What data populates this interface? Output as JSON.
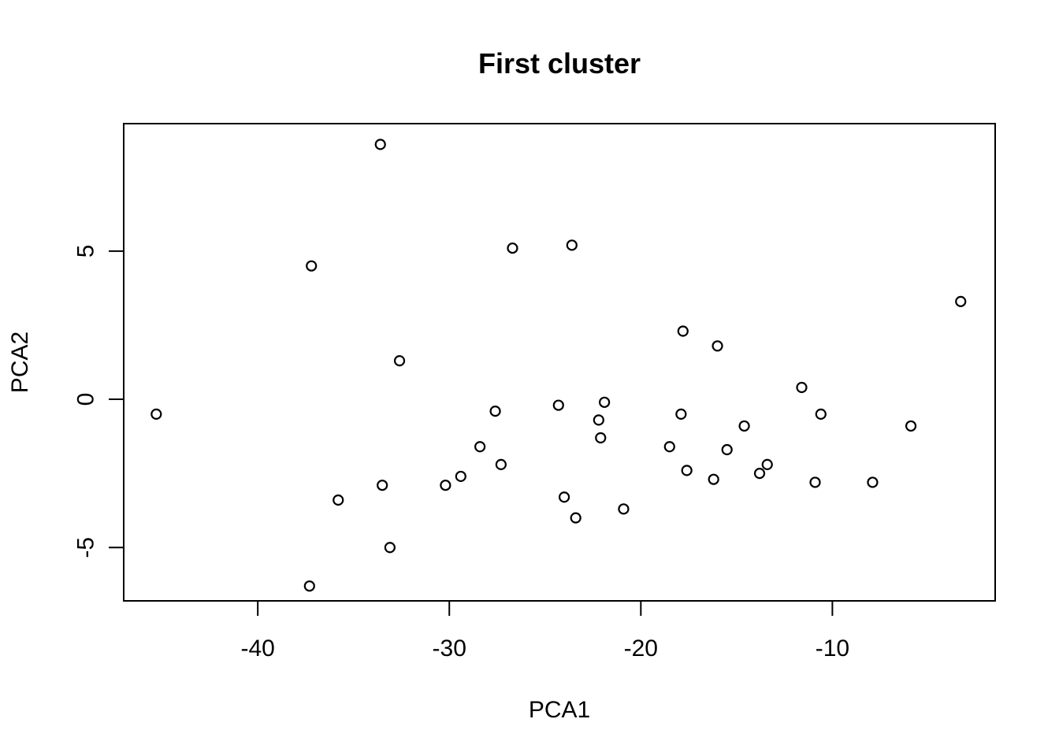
{
  "chart_data": {
    "type": "scatter",
    "title": "First cluster",
    "xlabel": "PCA1",
    "ylabel": "PCA2",
    "xlim": [
      -47,
      -1.5
    ],
    "ylim": [
      -6.8,
      9.3
    ],
    "x_ticks": [
      {
        "value": -40,
        "label": "-40"
      },
      {
        "value": -30,
        "label": "-30"
      },
      {
        "value": -20,
        "label": "-20"
      },
      {
        "value": -10,
        "label": "-10"
      }
    ],
    "y_ticks": [
      {
        "value": -5,
        "label": "-5"
      },
      {
        "value": 0,
        "label": "0"
      },
      {
        "value": 5,
        "label": "5"
      }
    ],
    "grid": false,
    "marker": "open-circle",
    "color": "#000000",
    "points": [
      {
        "x": -45.3,
        "y": -0.5
      },
      {
        "x": -37.3,
        "y": -6.3
      },
      {
        "x": -37.2,
        "y": 4.5
      },
      {
        "x": -35.8,
        "y": -3.4
      },
      {
        "x": -33.6,
        "y": 8.6
      },
      {
        "x": -33.5,
        "y": -2.9
      },
      {
        "x": -33.1,
        "y": -5.0
      },
      {
        "x": -32.6,
        "y": 1.3
      },
      {
        "x": -30.2,
        "y": -2.9
      },
      {
        "x": -29.4,
        "y": -2.6
      },
      {
        "x": -28.4,
        "y": -1.6
      },
      {
        "x": -27.6,
        "y": -0.4
      },
      {
        "x": -27.3,
        "y": -2.2
      },
      {
        "x": -26.7,
        "y": 5.1
      },
      {
        "x": -24.3,
        "y": -0.2
      },
      {
        "x": -24.0,
        "y": -3.3
      },
      {
        "x": -23.6,
        "y": 5.2
      },
      {
        "x": -23.4,
        "y": -4.0
      },
      {
        "x": -22.2,
        "y": -0.7
      },
      {
        "x": -22.1,
        "y": -1.3
      },
      {
        "x": -21.9,
        "y": -0.1
      },
      {
        "x": -20.9,
        "y": -3.7
      },
      {
        "x": -18.5,
        "y": -1.6
      },
      {
        "x": -17.9,
        "y": -0.5
      },
      {
        "x": -17.8,
        "y": 2.3
      },
      {
        "x": -17.6,
        "y": -2.4
      },
      {
        "x": -16.2,
        "y": -2.7
      },
      {
        "x": -16.0,
        "y": 1.8
      },
      {
        "x": -15.5,
        "y": -1.7
      },
      {
        "x": -14.6,
        "y": -0.9
      },
      {
        "x": -13.8,
        "y": -2.5
      },
      {
        "x": -13.4,
        "y": -2.2
      },
      {
        "x": -11.6,
        "y": 0.4
      },
      {
        "x": -10.9,
        "y": -2.8
      },
      {
        "x": -10.6,
        "y": -0.5
      },
      {
        "x": -7.9,
        "y": -2.8
      },
      {
        "x": -5.9,
        "y": -0.9
      },
      {
        "x": -3.3,
        "y": 3.3
      }
    ]
  }
}
